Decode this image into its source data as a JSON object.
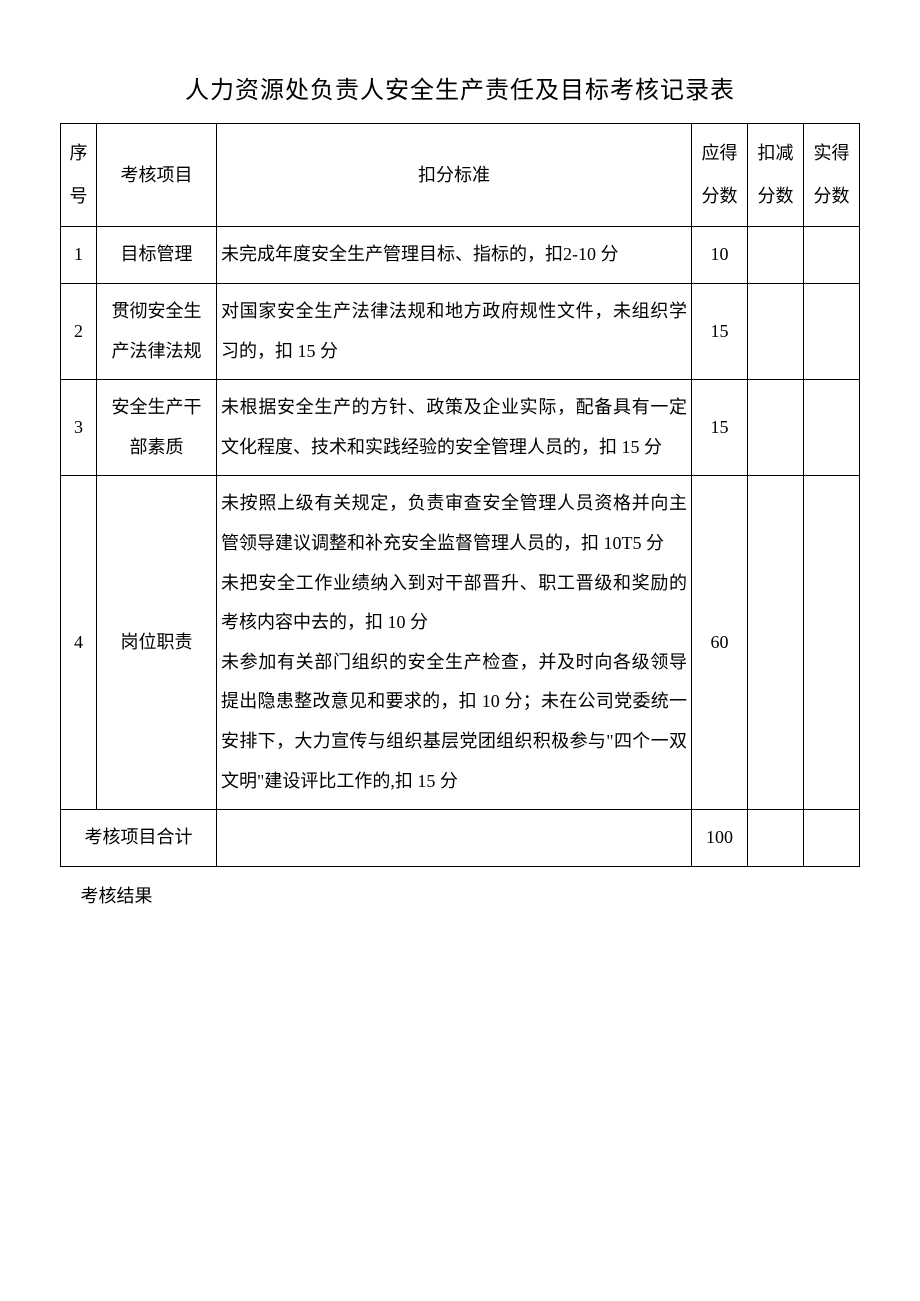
{
  "document": {
    "title": "人力资源处负责人安全生产责任及目标考核记录表",
    "background_color": "#ffffff",
    "text_color": "#000000",
    "border_color": "#000000",
    "title_fontsize": 24,
    "body_fontsize": 18,
    "table": {
      "headers": {
        "seq": "序号",
        "item": "考核项目",
        "criteria": "扣分标准",
        "expected_score": "应得分数",
        "deduction": "扣减分数",
        "actual_score": "实得分数"
      },
      "rows": [
        {
          "seq": "1",
          "item": "目标管理",
          "criteria": "未完成年度安全生产管理目标、指标的，扣2-10 分",
          "expected_score": "10",
          "deduction": "",
          "actual_score": ""
        },
        {
          "seq": "2",
          "item": "贯彻安全生产法律法规",
          "criteria": "对国家安全生产法律法规和地方政府规性文件，未组织学习的，扣 15 分",
          "expected_score": "15",
          "deduction": "",
          "actual_score": ""
        },
        {
          "seq": "3",
          "item": "安全生产干部素质",
          "criteria": "未根据安全生产的方针、政策及企业实际，配备具有一定文化程度、技术和实践经验的安全管理人员的，扣 15 分",
          "expected_score": "15",
          "deduction": "",
          "actual_score": ""
        },
        {
          "seq": "4",
          "item": "岗位职责",
          "criteria": "未按照上级有关规定，负责审查安全管理人员资格并向主管领导建议调整和补充安全监督管理人员的，扣 10T5 分\n未把安全工作业绩纳入到对干部晋升、职工晋级和奖励的考核内容中去的，扣 10 分\n未参加有关部门组织的安全生产检查，并及时向各级领导提出隐患整改意见和要求的，扣 10 分；未在公司党委统一安排下，大力宣传与组织基层党团组织积极参与\"四个一双文明\"建设评比工作的,扣 15 分",
          "expected_score": "60",
          "deduction": "",
          "actual_score": ""
        }
      ],
      "summary": {
        "label": "考核项目合计",
        "total": "100"
      },
      "result_label": "考核结果"
    }
  }
}
